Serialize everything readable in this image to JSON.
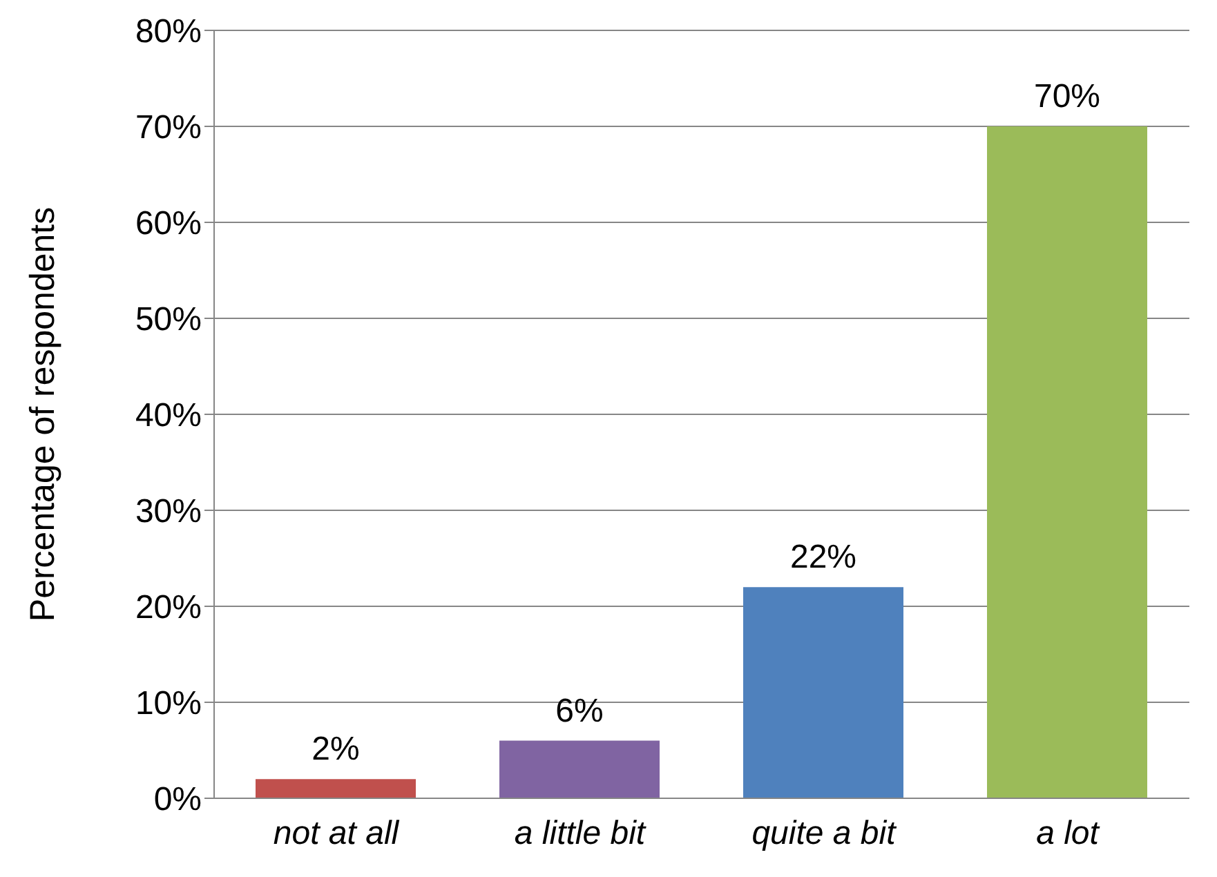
{
  "chart_data": {
    "type": "bar",
    "ylabel": "Percentage of respondents",
    "categories": [
      "not at all",
      "a little bit",
      "quite a bit",
      "a lot"
    ],
    "values": [
      2,
      6,
      22,
      70
    ],
    "colors": [
      "#c0504d",
      "#8064a2",
      "#4f81bd",
      "#9bbb59"
    ],
    "value_labels": [
      "2%",
      "6%",
      "22%",
      "70%"
    ],
    "ylim": [
      0,
      80
    ],
    "yticks": [
      {
        "value": 0,
        "label": "0%"
      },
      {
        "value": 10,
        "label": "10%"
      },
      {
        "value": 20,
        "label": "20%"
      },
      {
        "value": 30,
        "label": "30%"
      },
      {
        "value": 40,
        "label": "40%"
      },
      {
        "value": 50,
        "label": "50%"
      },
      {
        "value": 60,
        "label": "60%"
      },
      {
        "value": 70,
        "label": "70%"
      },
      {
        "value": 80,
        "label": "80%"
      }
    ],
    "grid": "y",
    "legend": false
  }
}
